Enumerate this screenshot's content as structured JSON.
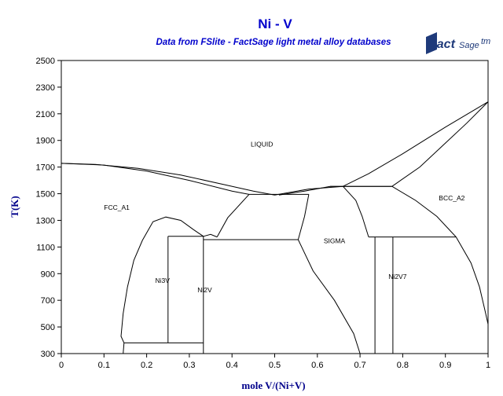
{
  "chart_data": {
    "type": "line",
    "title": "Ni - V",
    "subtitle": "Data from FSlite - FactSage light metal alloy databases",
    "xlabel": "mole V/(Ni+V)",
    "ylabel": "T(K)",
    "xlim": [
      0,
      1
    ],
    "ylim": [
      300,
      2500
    ],
    "x_ticks": [
      0,
      0.1,
      0.2,
      0.3,
      0.4,
      0.5,
      0.6,
      0.7,
      0.8,
      0.9,
      1
    ],
    "x_tick_labels": [
      "0",
      "0.1",
      "0.2",
      "0.3",
      "0.4",
      "0.5",
      "0.6",
      "0.7",
      "0.8",
      "0.9",
      "1"
    ],
    "y_ticks": [
      300,
      500,
      700,
      900,
      1100,
      1300,
      1500,
      1700,
      1900,
      2100,
      2300,
      2500
    ],
    "y_tick_labels": [
      "300",
      "500",
      "700",
      "900",
      "1100",
      "1300",
      "1500",
      "1700",
      "1900",
      "2100",
      "2300",
      "2500"
    ],
    "grid": false,
    "line_color": "#000000",
    "title_color": "#0000cc",
    "phase_labels": [
      {
        "text": "LIQUID",
        "x": 0.47,
        "y": 1855
      },
      {
        "text": "FCC_A1",
        "x": 0.13,
        "y": 1380
      },
      {
        "text": "BCC_A2",
        "x": 0.915,
        "y": 1450
      },
      {
        "text": "SIGMA",
        "x": 0.64,
        "y": 1130
      },
      {
        "text": "Ni3V",
        "x": 0.237,
        "y": 830
      },
      {
        "text": "Ni2V",
        "x": 0.336,
        "y": 760
      },
      {
        "text": "Ni2V7",
        "x": 0.788,
        "y": 860
      }
    ],
    "series": [
      {
        "points": [
          [
            0,
            1728
          ],
          [
            0.08,
            1720
          ],
          [
            0.18,
            1690
          ],
          [
            0.28,
            1640
          ],
          [
            0.38,
            1570
          ],
          [
            0.45,
            1520
          ],
          [
            0.5,
            1490
          ]
        ]
      },
      {
        "points": [
          [
            0,
            1728
          ],
          [
            0.1,
            1715
          ],
          [
            0.2,
            1670
          ],
          [
            0.3,
            1600
          ],
          [
            0.4,
            1520
          ],
          [
            0.44,
            1495
          ]
        ]
      },
      {
        "points": [
          [
            0.44,
            1495
          ],
          [
            0.58,
            1495
          ]
        ]
      },
      {
        "points": [
          [
            0.5,
            1490
          ],
          [
            0.58,
            1535
          ],
          [
            0.66,
            1555
          ]
        ]
      },
      {
        "points": [
          [
            0.66,
            1555
          ],
          [
            0.72,
            1650
          ],
          [
            0.8,
            1800
          ],
          [
            0.9,
            2000
          ],
          [
            1,
            2190
          ]
        ]
      },
      {
        "points": [
          [
            0.51,
            1490
          ],
          [
            0.57,
            1520
          ],
          [
            0.63,
            1555
          ],
          [
            0.775,
            1555
          ]
        ]
      },
      {
        "points": [
          [
            0.775,
            1555
          ],
          [
            0.84,
            1700
          ],
          [
            0.9,
            1880
          ],
          [
            0.95,
            2030
          ],
          [
            1,
            2190
          ]
        ]
      },
      {
        "points": [
          [
            0.63,
            1555
          ],
          [
            0.775,
            1555
          ]
        ]
      },
      {
        "points": [
          [
            0.775,
            1555
          ],
          [
            0.83,
            1450
          ],
          [
            0.88,
            1330
          ],
          [
            0.925,
            1175
          ]
        ]
      },
      {
        "points": [
          [
            0.925,
            1175
          ],
          [
            0.96,
            980
          ],
          [
            0.98,
            800
          ],
          [
            0.993,
            620
          ],
          [
            1,
            520
          ]
        ]
      },
      {
        "points": [
          [
            0.66,
            1555
          ],
          [
            0.69,
            1450
          ],
          [
            0.705,
            1330
          ],
          [
            0.72,
            1175
          ]
        ]
      },
      {
        "points": [
          [
            0.72,
            1175
          ],
          [
            0.925,
            1175
          ]
        ]
      },
      {
        "points": [
          [
            0.735,
            1175
          ],
          [
            0.735,
            300
          ]
        ]
      },
      {
        "points": [
          [
            0.777,
            1175
          ],
          [
            0.777,
            300
          ]
        ]
      },
      {
        "points": [
          [
            0.44,
            1495
          ],
          [
            0.39,
            1320
          ],
          [
            0.365,
            1175
          ]
        ]
      },
      {
        "points": [
          [
            0.58,
            1495
          ],
          [
            0.57,
            1330
          ],
          [
            0.555,
            1155
          ]
        ]
      },
      {
        "points": [
          [
            0.333,
            1155
          ],
          [
            0.555,
            1155
          ]
        ]
      },
      {
        "points": [
          [
            0.555,
            1155
          ],
          [
            0.59,
            920
          ],
          [
            0.64,
            700
          ],
          [
            0.685,
            450
          ],
          [
            0.7,
            300
          ]
        ]
      },
      {
        "points": [
          [
            0.25,
            1180
          ],
          [
            0.333,
            1180
          ]
        ]
      },
      {
        "points": [
          [
            0.333,
            1180
          ],
          [
            0.35,
            1195
          ],
          [
            0.365,
            1175
          ]
        ]
      },
      {
        "points": [
          [
            0.25,
            1180
          ],
          [
            0.25,
            380
          ]
        ]
      },
      {
        "points": [
          [
            0.333,
            1180
          ],
          [
            0.333,
            300
          ]
        ]
      },
      {
        "points": [
          [
            0.147,
            380
          ],
          [
            0.333,
            380
          ]
        ]
      },
      {
        "points": [
          [
            0.147,
            380
          ],
          [
            0.14,
            430
          ],
          [
            0.145,
            600
          ],
          [
            0.155,
            800
          ],
          [
            0.17,
            1000
          ],
          [
            0.19,
            1150
          ],
          [
            0.215,
            1290
          ],
          [
            0.245,
            1325
          ],
          [
            0.28,
            1300
          ],
          [
            0.31,
            1230
          ],
          [
            0.333,
            1180
          ]
        ]
      },
      {
        "points": [
          [
            0.147,
            380
          ],
          [
            0.145,
            300
          ]
        ]
      }
    ]
  },
  "logo": {
    "brand": "Fact",
    "brand_suffix": "Sage",
    "mark": "tm"
  }
}
